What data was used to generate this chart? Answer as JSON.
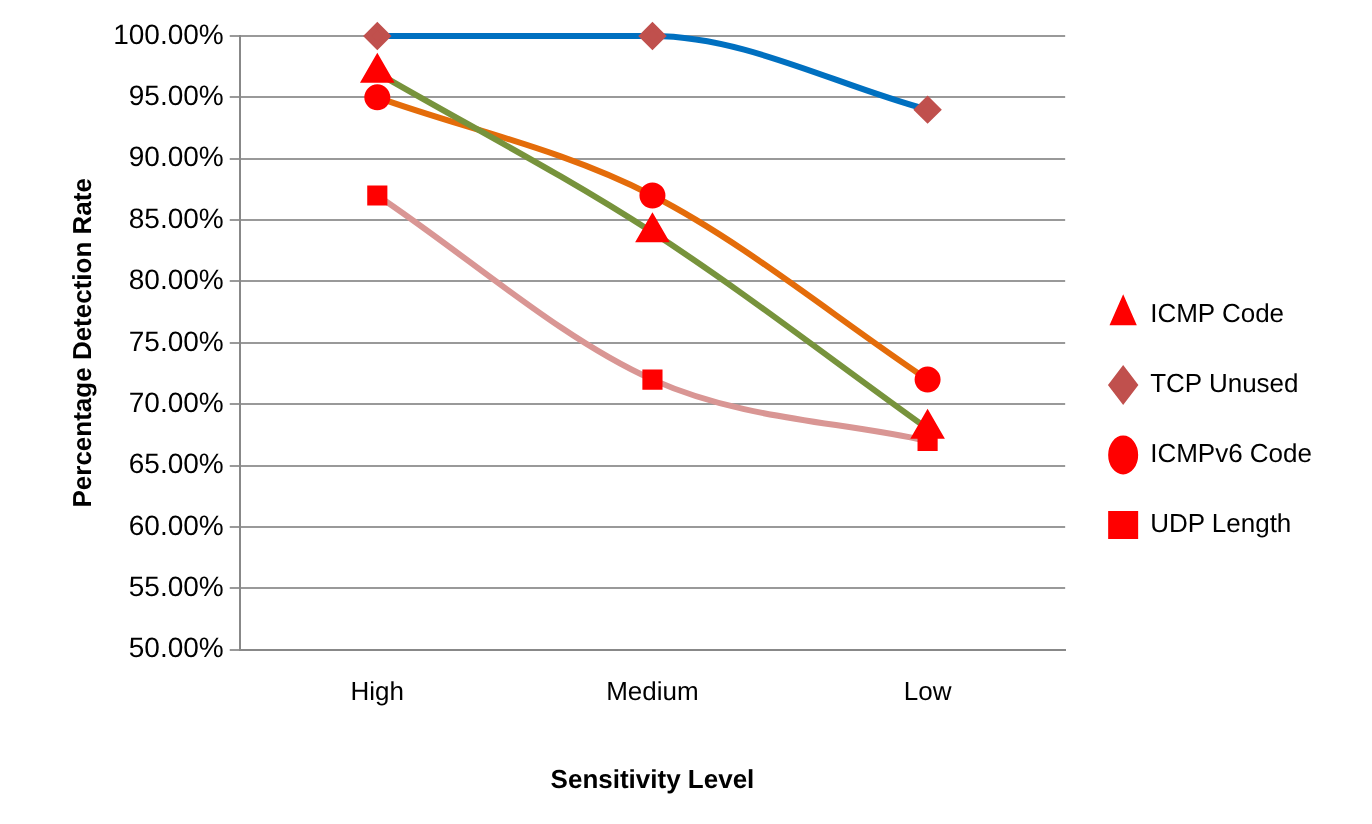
{
  "chart_data": {
    "type": "line",
    "xlabel": "Sensitivity Level",
    "ylabel": "Percentage Detection Rate",
    "categories": [
      "High",
      "Medium",
      "Low"
    ],
    "series": [
      {
        "name": "ICMP Code",
        "color": "#77933c",
        "marker": "triangle",
        "values": [
          97,
          84,
          68
        ]
      },
      {
        "name": "TCP Unused",
        "color": "#0070c0",
        "marker": "diamond",
        "values": [
          100,
          100,
          94
        ]
      },
      {
        "name": "ICMPv6 Code",
        "color": "#e46c0a",
        "marker": "circle",
        "values": [
          95,
          87,
          72
        ]
      },
      {
        "name": "UDP Length",
        "color": "#d99694",
        "marker": "square",
        "values": [
          87,
          72,
          67
        ]
      }
    ],
    "ylim": [
      50,
      100
    ],
    "yticks": [
      {
        "value": 50,
        "label": "50.00%"
      },
      {
        "value": 55,
        "label": "55.00%"
      },
      {
        "value": 60,
        "label": "60.00%"
      },
      {
        "value": 65,
        "label": "65.00%"
      },
      {
        "value": 70,
        "label": "70.00%"
      },
      {
        "value": 75,
        "label": "75.00%"
      },
      {
        "value": 80,
        "label": "80.00%"
      },
      {
        "value": 85,
        "label": "85.00%"
      },
      {
        "value": 90,
        "label": "90.00%"
      },
      {
        "value": 95,
        "label": "95.00%"
      },
      {
        "value": 100,
        "label": "100.00%"
      }
    ],
    "grid": "y",
    "legend": "right",
    "line_style": "solid"
  }
}
